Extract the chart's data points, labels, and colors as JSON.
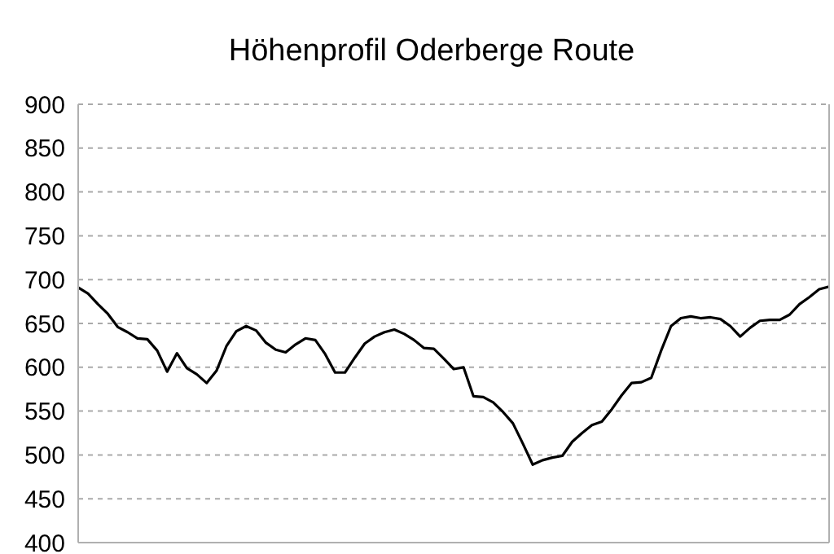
{
  "chart_data": {
    "type": "line",
    "title": "Höhenprofil Oderberge Route",
    "categories": [
      null,
      null,
      null,
      null,
      null,
      null,
      null,
      null,
      null,
      null,
      null,
      null,
      null,
      null,
      null,
      null,
      null,
      null,
      null,
      null,
      null,
      null,
      null,
      null,
      null,
      null,
      null,
      null,
      null,
      null,
      null,
      null,
      null,
      null,
      null,
      null,
      null,
      null,
      null,
      null,
      null,
      null,
      null,
      null,
      null,
      null,
      null,
      null,
      null,
      null,
      null,
      null,
      null,
      null,
      null,
      null,
      null,
      null,
      null,
      null,
      null,
      null,
      null,
      null,
      null,
      null,
      null,
      null,
      null,
      null,
      null,
      null,
      null,
      null,
      null,
      null,
      null
    ],
    "series": [
      {
        "color": "#000000",
        "values": [
          691,
          684,
          672,
          661,
          646,
          640,
          633,
          632,
          619,
          595,
          616,
          599,
          592,
          582,
          596,
          624,
          641,
          647,
          642,
          628,
          620,
          617,
          626,
          633,
          631,
          615,
          594,
          594,
          611,
          627,
          635,
          640,
          643,
          638,
          631,
          622,
          621,
          610,
          598,
          600,
          567,
          566,
          560,
          549,
          536,
          513,
          489,
          494,
          497,
          499,
          515,
          525,
          534,
          538,
          552,
          568,
          582,
          583,
          588,
          619,
          647,
          656,
          658,
          656,
          657,
          655,
          647,
          635,
          645,
          653,
          654,
          654,
          660,
          672,
          680,
          689,
          692
        ]
      }
    ],
    "ylim": [
      400,
      900
    ],
    "yticks": [
      400,
      450,
      500,
      550,
      600,
      650,
      700,
      750,
      800,
      850,
      900
    ],
    "grid": "y",
    "tick_labels": "y",
    "legend": false,
    "marker": "none",
    "line_style": "solid"
  }
}
